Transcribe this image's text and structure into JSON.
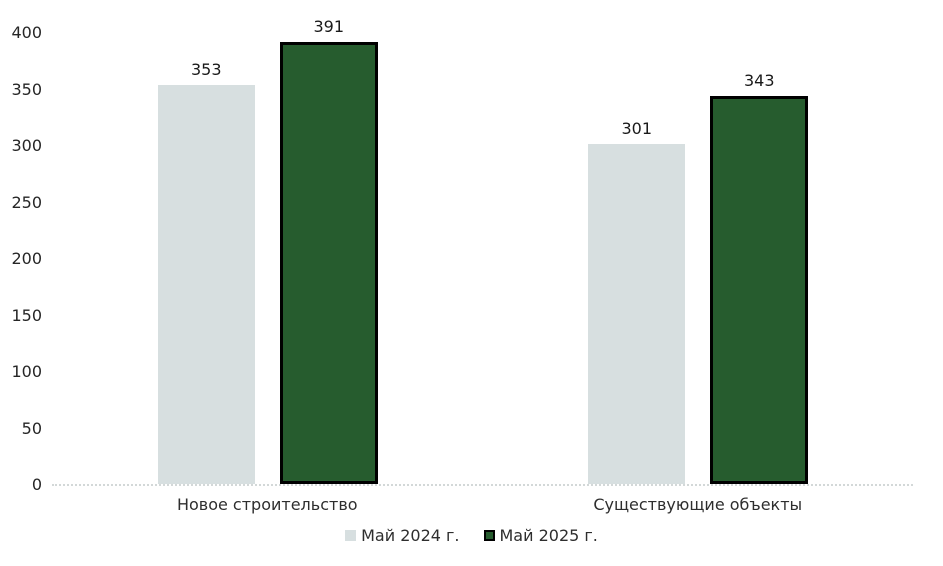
{
  "chart_data": {
    "type": "bar",
    "title": "",
    "xlabel": "",
    "ylabel": "",
    "categories": [
      "Новое строительство",
      "Существующие объекты"
    ],
    "series": [
      {
        "name": "Май 2024 г.",
        "values": [
          353,
          301
        ],
        "color": "#d7dfe0",
        "border_color": "none"
      },
      {
        "name": "Май 2025 г.",
        "values": [
          391,
          343
        ],
        "color": "#265c2e",
        "border_color": "#000000"
      }
    ],
    "ylim": [
      0,
      400
    ],
    "yticks": [
      0,
      50,
      100,
      150,
      200,
      250,
      300,
      350,
      400
    ],
    "grid": false,
    "legend_position": "bottom",
    "value_labels": true,
    "axis_line_color": "#d3d8d8",
    "text_color": "#262626",
    "background_color": "#ffffff"
  }
}
